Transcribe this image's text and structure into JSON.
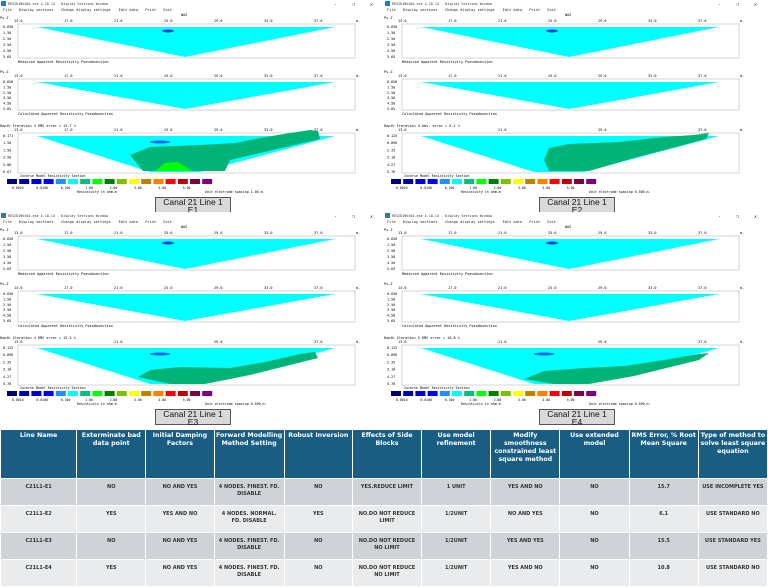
{
  "window": {
    "title": "RES2DINVx64.exe 4.10.14 - Display Sections Window",
    "menu": [
      "File",
      "Display sections",
      "Change display settings",
      "Edit data",
      "Print",
      "Exit"
    ],
    "window_controls": [
      "-",
      "❐",
      "✕"
    ]
  },
  "common": {
    "array_label": "WAS",
    "pseudo_axis_label": "Ps.Z",
    "unit_m": "m.",
    "measured_label": "Measured Apparent Resistivity Pseudosection",
    "calculated_label": "Calculated Apparent Resistivity Pseudosection",
    "legend_title": "Inverse Model Resistivity Section",
    "legend_colors": [
      "#00007f",
      "#0000a8",
      "#0000d0",
      "#0000ff",
      "#1e90ff",
      "#00ffff",
      "#00c080",
      "#00ff00",
      "#008000",
      "#80c000",
      "#ffff00",
      "#c08000",
      "#ff8000",
      "#ff0000",
      "#c00000",
      "#800040",
      "#800080"
    ],
    "legend_values": [
      "0.0010",
      "0.0100",
      "0.100",
      "1.00",
      "2.00",
      "3.00",
      "4.00",
      "5.00"
    ],
    "resistivity_unit": "Resistivity in ohm.m",
    "pseudo_depths": [
      "0.650",
      "1.50",
      "2.50",
      "3.50",
      "4.50",
      "5.65"
    ]
  },
  "panels": [
    {
      "id": "E1",
      "x_ticks": [
        "13.0",
        "17.0",
        "21.0",
        "25.0",
        "29.0",
        "33.0",
        "37.0"
      ],
      "model_ticks": [
        "13.0",
        "17.0",
        "21.0",
        "25.0",
        "29.0",
        "33.0",
        "37.0"
      ],
      "depth_header": "Depth  Iteration 4 RMS error = 15.7 %",
      "model_depths": [
        "0.171",
        "1.50",
        "1.50",
        "3.50",
        "5.06",
        "6.67"
      ],
      "spacing": "Unit electrode spacing 1.00 m.",
      "caption_line1": "Canal 21 Line 1",
      "caption_line2": "E1"
    },
    {
      "id": "E2",
      "x_ticks": [
        "13.0",
        "17.0",
        "21.0",
        "25.0",
        "29.0",
        "33.0",
        "37.0"
      ],
      "model_ticks": [
        "13.0",
        "21.0",
        "29.0",
        "37.0"
      ],
      "depth_header": "Depth  Iteration 4 Abs. error = 6.1 %",
      "model_depths": [
        "0.125",
        "0.896",
        "2.35",
        "3.10",
        "4.27",
        "5.76"
      ],
      "spacing": "Unit electrode spacing 0.500 m.",
      "caption_line1": "Canal 21 Line 1",
      "caption_line2": "E2"
    },
    {
      "id": "E3",
      "x_ticks": [
        "13.0",
        "17.0",
        "21.0",
        "25.0",
        "29.0",
        "33.0",
        "37.0"
      ],
      "model_ticks": [
        "13.0",
        "21.0",
        "29.0",
        "37.0"
      ],
      "depth_header": "Depth  Iteration 4 RMS error = 15.5 %",
      "model_depths": [
        "0.125",
        "0.896",
        "2.35",
        "3.10",
        "4.27",
        "5.76"
      ],
      "spacing": "Unit electrode spacing 0.500 m.",
      "caption_line1": "Canal 21 Line 1",
      "caption_line2": "E3"
    },
    {
      "id": "E4",
      "x_ticks": [
        "13.0",
        "17.0",
        "21.0",
        "25.0",
        "29.0",
        "33.0",
        "37.0"
      ],
      "model_ticks": [
        "13.0",
        "21.0",
        "29.0",
        "37.0"
      ],
      "depth_header": "Depth  Iteration 5 RMS error = 10.8 %",
      "model_depths": [
        "0.125",
        "0.896",
        "2.35",
        "3.10",
        "4.27",
        "5.76"
      ],
      "spacing": "Unit electrode spacing 0.500 m.",
      "caption_line1": "Canal 21 Line 1",
      "caption_line2": "E4"
    }
  ],
  "table": {
    "headers": [
      "Line Name",
      "Exterminate bad data point",
      "Initial Damping Factors",
      "Forward Modelling Method Setting",
      "Robust Inversion",
      "Effects of Side Blocks",
      "Use model refinement",
      "Modify smoothness constrained least square method",
      "Use extended model",
      "RMS Error, % Root Mean Square",
      "Type of method to solve least square equation"
    ],
    "rows": [
      [
        "C21L1-E1",
        "NO",
        "NO AND YES",
        "4 NODES. FINEST. FD. DISABLE",
        "NO",
        "YES.REDUCE LIMIT",
        "1 UNIT",
        "YES AND NO",
        "NO",
        "15.7",
        "USE INCOMPLETE YES"
      ],
      [
        "C21L1-E2",
        "YES",
        "YES AND NO",
        "4 NODES. NORMAL. FD. DISABLE",
        "YES",
        "NO.DO NOT REDUCE LIMIT",
        "1/2UNIT",
        "NO AND YES",
        "NO",
        "6.1",
        "USE STANDARD NO"
      ],
      [
        "C21L1-E3",
        "NO",
        "NO AND YES",
        "4 NODES. FINEST. FD. DISABLE",
        "NO",
        "NO.DO NOT REDUCE NO LIMIT",
        "1/2UNIT",
        "YES AND YES",
        "NO",
        "15.5",
        "USE STANDARD YES"
      ],
      [
        "C21L1-E4",
        "YES",
        "NO AND YES",
        "4 NODES. FINEST. FD. DISABLE",
        "NO",
        "NO.DO NOT REDUCE NO LIMIT",
        "1/2UNIT",
        "YES AND NO",
        "NO",
        "10.8",
        "USE STANDARD NO"
      ]
    ]
  }
}
